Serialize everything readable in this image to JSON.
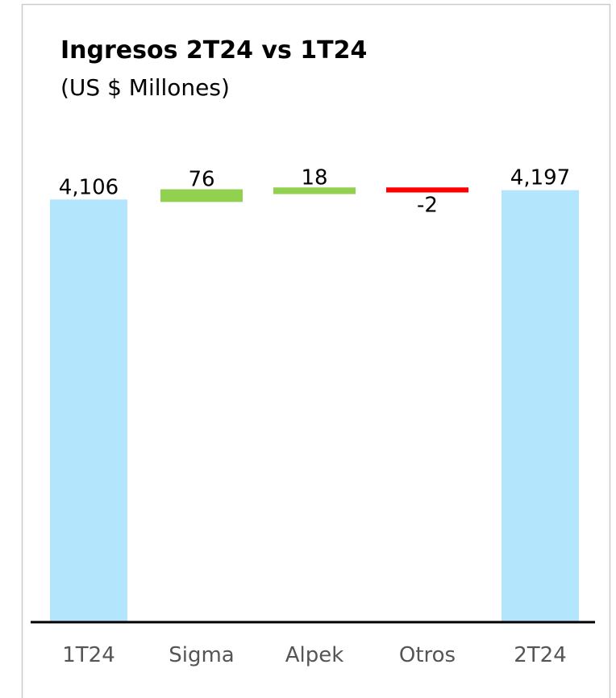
{
  "chart_data": {
    "type": "waterfall",
    "title": "Ingresos 2T24 vs 1T24",
    "subtitle": "(US $ Millones)",
    "categories": [
      "1T24",
      "Sigma",
      "Alpek",
      "Otros",
      "2T24"
    ],
    "values": [
      4106,
      76,
      18,
      -2,
      4197
    ],
    "value_labels": [
      "4,106",
      "76",
      "18",
      "-2",
      "4,197"
    ],
    "colors": {
      "total": "#b3e5fc",
      "increase": "#92d050",
      "decrease": "#ff0000"
    },
    "ylim": [
      0,
      4500
    ]
  }
}
